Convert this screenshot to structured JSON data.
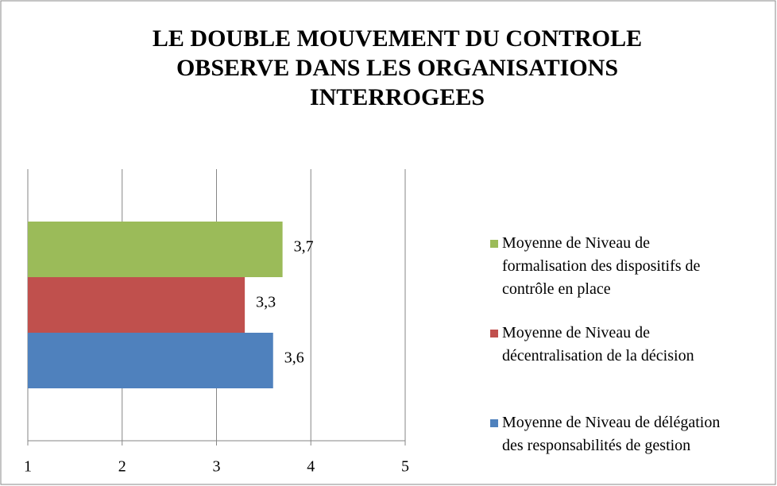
{
  "chart_data": {
    "type": "bar",
    "orientation": "horizontal",
    "title": "LE DOUBLE MOUVEMENT DU CONTROLE OBSERVE DANS LES ORGANISATIONS INTERROGEES",
    "categories": [
      null
    ],
    "series": [
      {
        "name": "Moyenne de Niveau de délégation des responsabilités de gestion",
        "color": "#4f81bd",
        "values": [
          3.6
        ],
        "value_labels": [
          "3,6"
        ]
      },
      {
        "name": "Moyenne de Niveau de décentralisation de la décision",
        "color": "#c0504d",
        "values": [
          3.3
        ],
        "value_labels": [
          "3,3"
        ]
      },
      {
        "name": "Moyenne de Niveau de formalisation des dispositifs de contrôle en place",
        "color": "#9bbb59",
        "values": [
          3.7
        ],
        "value_labels": [
          "3,7"
        ]
      }
    ],
    "xlim": [
      1,
      5
    ],
    "xticks": [
      1,
      2,
      3,
      4,
      5
    ],
    "grid": true,
    "legend": "right"
  }
}
